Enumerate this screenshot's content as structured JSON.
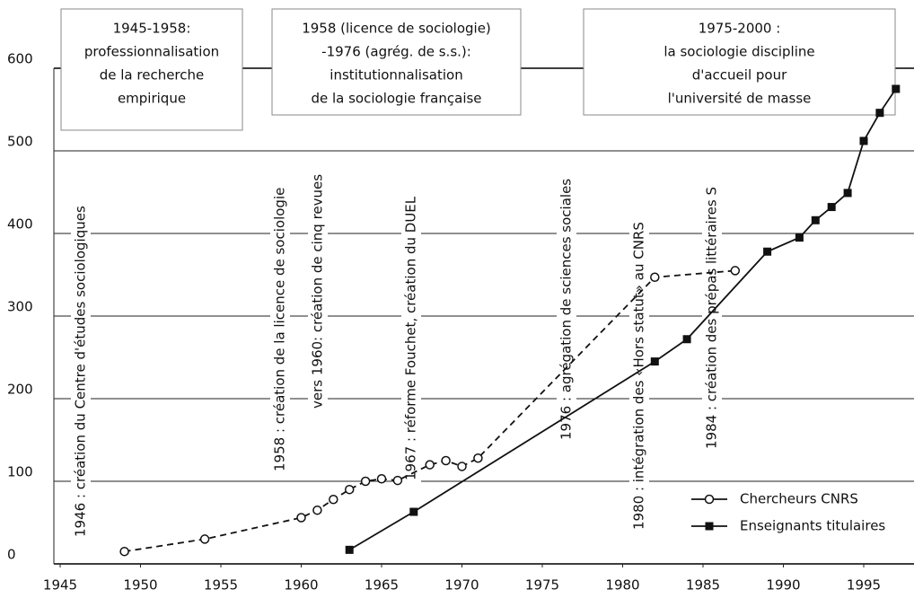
{
  "chart_data": {
    "type": "line",
    "xlim": [
      1945,
      1998
    ],
    "xticks": [
      1945,
      1950,
      1955,
      1960,
      1965,
      1970,
      1975,
      1980,
      1985,
      1990,
      1995
    ],
    "ylim": [
      0,
      600
    ],
    "yticks": [
      0,
      100,
      200,
      300,
      400,
      500,
      600
    ],
    "grid": true,
    "legend": "lower right",
    "series": [
      {
        "name": "Chercheurs CNRS",
        "color": "#111111",
        "style": "dashed",
        "marker": "open-circle",
        "x": [
          1949,
          1954,
          1960,
          1961,
          1962,
          1963,
          1964,
          1965,
          1966,
          1968,
          1969,
          1970,
          1971,
          1982,
          1987
        ],
        "values": [
          15,
          30,
          56,
          65,
          78,
          90,
          100,
          103,
          101,
          120,
          125,
          118,
          128,
          347,
          355
        ]
      },
      {
        "name": "Enseignants titulaires",
        "color": "#111111",
        "style": "solid",
        "marker": "filled-square",
        "x": [
          1963,
          1967,
          1982,
          1984,
          1989,
          1991,
          1992,
          1993,
          1994,
          1995,
          1996,
          1997
        ],
        "values": [
          17,
          63,
          245,
          272,
          378,
          395,
          416,
          432,
          449,
          512,
          546,
          575
        ]
      }
    ],
    "periods": [
      {
        "lines": [
          "1945-1958:",
          "professionnalisation",
          "de la recherche",
          "empirique"
        ]
      },
      {
        "lines": [
          "1958 (licence de sociologie)",
          "-1976 (agrég. de s.s.):",
          "institutionnalisation",
          "de la sociologie française"
        ]
      },
      {
        "lines": [
          "1975-2000 :",
          "la sociologie discipline",
          "d'accueil pour",
          "l'université de masse"
        ]
      }
    ],
    "annotations": [
      "1946 : création du Centre d'études sociologiques",
      "1958 : création de la licence de sociologie",
      "vers 1960: création de cinq revues",
      "1967 : réforme Fouchet, création du DUEL",
      "1976 : agrégation de sciences sociales",
      "1980 : intégration des «Hors statut» au CNRS",
      "1984 : création des prépas littéraires S"
    ]
  }
}
